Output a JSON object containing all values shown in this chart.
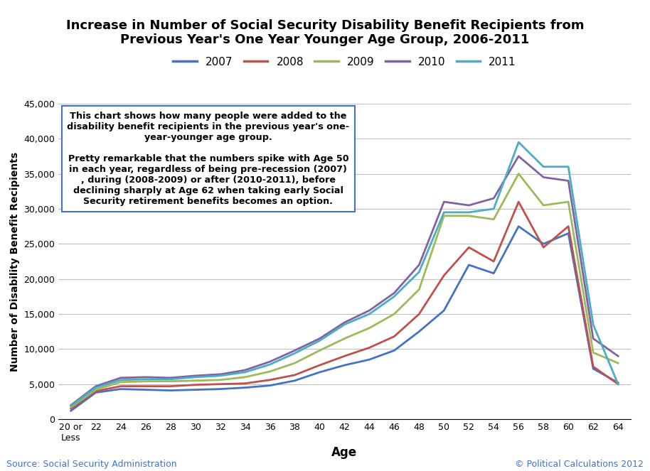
{
  "title": "Increase in Number of Social Security Disability Benefit Recipients from\nPrevious Year's One Year Younger Age Group, 2006-2011",
  "xlabel": "Age",
  "ylabel": "Number of Disability Benefit Recipients",
  "source_text": "Source: Social Security Administration",
  "copyright_text": "© Political Calculations 2012",
  "annotation": "This chart shows how many people were added to the\ndisability benefit recipients in the previous year's one-\nyear-younger age group.\n\nPretty remarkable that the numbers spike with Age 50\nin each year, regardless of being pre-recession (2007)\n, during (2008-2009) or after (2010-2011), before\ndeclining sharply at Age 62 when taking early Social\nSecurity retirement benefits becomes an option.",
  "ylim": [
    0,
    45000
  ],
  "yticks": [
    0,
    5000,
    10000,
    15000,
    20000,
    25000,
    30000,
    35000,
    40000,
    45000
  ],
  "ages": [
    20,
    22,
    24,
    26,
    28,
    30,
    32,
    34,
    36,
    38,
    40,
    42,
    44,
    46,
    48,
    50,
    52,
    54,
    56,
    58,
    60,
    62,
    64
  ],
  "xtick_labels": [
    "20 or\nLess",
    "22",
    "24",
    "26",
    "28",
    "30",
    "32",
    "34",
    "36",
    "38",
    "40",
    "42",
    "44",
    "46",
    "48",
    "50",
    "52",
    "54",
    "56",
    "58",
    "60",
    "62",
    "64"
  ],
  "series": {
    "2007": {
      "color": "#4472C4",
      "values": [
        1200,
        3800,
        4300,
        4200,
        4100,
        4200,
        4300,
        4500,
        4800,
        5500,
        6700,
        7700,
        8500,
        9800,
        12500,
        15500,
        22000,
        20800,
        27500,
        25000,
        26500,
        7200,
        5200
      ]
    },
    "2008": {
      "color": "#C0504D",
      "values": [
        1500,
        4000,
        4700,
        4700,
        4700,
        4900,
        5000,
        5100,
        5600,
        6300,
        7700,
        9000,
        10200,
        11800,
        15000,
        20500,
        24500,
        22500,
        31000,
        24500,
        27500,
        7500,
        5000
      ]
    },
    "2009": {
      "color": "#9BBB59",
      "values": [
        1700,
        4200,
        5300,
        5400,
        5400,
        5500,
        5600,
        6000,
        6800,
        8000,
        9800,
        11500,
        13000,
        15000,
        18500,
        29000,
        29000,
        28500,
        35000,
        30500,
        31000,
        9500,
        8000
      ]
    },
    "2010": {
      "color": "#8064A2",
      "values": [
        2000,
        4700,
        5900,
        6000,
        5900,
        6200,
        6400,
        7000,
        8200,
        9800,
        11500,
        13800,
        15500,
        18000,
        22000,
        31000,
        30500,
        31500,
        37500,
        34500,
        34000,
        11500,
        9000
      ]
    },
    "2011": {
      "color": "#4BACC6",
      "values": [
        1900,
        4500,
        5600,
        5700,
        5700,
        6000,
        6200,
        6700,
        7800,
        9400,
        11200,
        13500,
        15000,
        17500,
        21000,
        29500,
        29500,
        30000,
        39500,
        36000,
        36000,
        13500,
        5000
      ]
    }
  },
  "legend_years": [
    "2007",
    "2008",
    "2009",
    "2010",
    "2011"
  ],
  "background_color": "#FFFFFF",
  "grid_color": "#C0C0C0"
}
